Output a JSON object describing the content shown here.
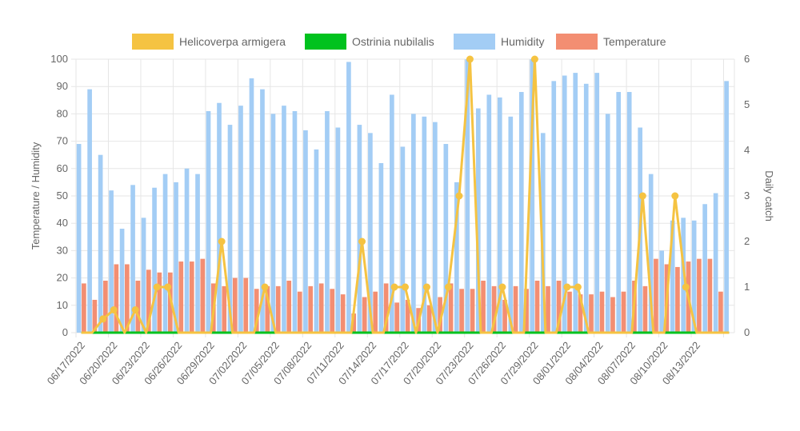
{
  "colors": {
    "helicoverpa": "#f5c342",
    "ostrinia": "#00c21e",
    "humidity": "#a3cdf5",
    "temperature": "#f38e72",
    "grid": "#e6e6e6",
    "text": "#666666"
  },
  "chart_data": {
    "type": "bar",
    "combo": "bars (left axis) + lines (right axis)",
    "legend_position": "top",
    "grid": true,
    "left_axis": {
      "label": "Temperature / Humidity",
      "range": [
        0,
        100
      ],
      "ticks": [
        "0",
        "10",
        "20",
        "30",
        "40",
        "50",
        "60",
        "70",
        "80",
        "90",
        "100"
      ]
    },
    "right_axis": {
      "label": "Daily catch",
      "range": [
        0,
        6
      ],
      "ticks": [
        "0",
        "1",
        "2",
        "3",
        "4",
        "5",
        "6"
      ]
    },
    "x_tick_labels": [
      "06/17/2022",
      "06/20/2022",
      "06/23/2022",
      "06/26/2022",
      "06/29/2022",
      "07/02/2022",
      "07/05/2022",
      "07/08/2022",
      "07/11/2022",
      "07/14/2022",
      "07/17/2022",
      "07/20/2022",
      "07/23/2022",
      "07/26/2022",
      "07/29/2022",
      "08/01/2022",
      "08/04/2022",
      "08/07/2022",
      "08/10/2022",
      "08/13/2022"
    ],
    "dates": [
      "06/17/2022",
      "06/18/2022",
      "06/19/2022",
      "06/20/2022",
      "06/21/2022",
      "06/22/2022",
      "06/23/2022",
      "06/24/2022",
      "06/25/2022",
      "06/26/2022",
      "06/27/2022",
      "06/28/2022",
      "06/29/2022",
      "06/30/2022",
      "07/01/2022",
      "07/02/2022",
      "07/03/2022",
      "07/04/2022",
      "07/05/2022",
      "07/06/2022",
      "07/07/2022",
      "07/08/2022",
      "07/09/2022",
      "07/10/2022",
      "07/11/2022",
      "07/12/2022",
      "07/13/2022",
      "07/14/2022",
      "07/15/2022",
      "07/16/2022",
      "07/17/2022",
      "07/18/2022",
      "07/19/2022",
      "07/20/2022",
      "07/21/2022",
      "07/22/2022",
      "07/23/2022",
      "07/24/2022",
      "07/25/2022",
      "07/26/2022",
      "07/27/2022",
      "07/28/2022",
      "07/29/2022",
      "07/30/2022",
      "07/31/2022",
      "08/01/2022",
      "08/02/2022",
      "08/03/2022",
      "08/04/2022",
      "08/05/2022",
      "08/06/2022",
      "08/07/2022",
      "08/08/2022",
      "08/09/2022",
      "08/10/2022",
      "08/11/2022",
      "08/12/2022",
      "08/13/2022",
      "08/14/2022",
      "08/15/2022",
      "08/16/2022"
    ],
    "series": [
      {
        "name": "Helicoverpa armigera",
        "type": "line",
        "axis": "right",
        "values": [
          0,
          0,
          0.3,
          0.5,
          0,
          0.5,
          0,
          1,
          1,
          0,
          0,
          0,
          0,
          2,
          0,
          0,
          0,
          1,
          0,
          0,
          0,
          0,
          0,
          0,
          0,
          0,
          2,
          0,
          0,
          1,
          1,
          0,
          1,
          0,
          1,
          3,
          6,
          0,
          0,
          1,
          0,
          0,
          6,
          0,
          0,
          1,
          1,
          0,
          0,
          0,
          0,
          0,
          3,
          0,
          0,
          3,
          1,
          0,
          0,
          0,
          0
        ]
      },
      {
        "name": "Ostrinia nubilalis",
        "type": "line",
        "axis": "right",
        "values": [
          0,
          0,
          0,
          0,
          0,
          0,
          0,
          0,
          0,
          0,
          0,
          0,
          0,
          0,
          0,
          0,
          0,
          0,
          0,
          0,
          0,
          0,
          0,
          0,
          0,
          0,
          0,
          0,
          0,
          0,
          0,
          0,
          0,
          0,
          0,
          0,
          0,
          0,
          0,
          0,
          0,
          0,
          0,
          0,
          0,
          0,
          0,
          0,
          0,
          0,
          0,
          0,
          0,
          0,
          0,
          0,
          0,
          0,
          0,
          0,
          0
        ]
      },
      {
        "name": "Humidity",
        "type": "bar",
        "axis": "left",
        "values": [
          69,
          89,
          65,
          52,
          38,
          54,
          42,
          53,
          58,
          55,
          60,
          58,
          81,
          84,
          76,
          83,
          93,
          89,
          80,
          83,
          81,
          74,
          67,
          81,
          75,
          99,
          76,
          73,
          62,
          87,
          68,
          80,
          79,
          77,
          69,
          55,
          100,
          82,
          87,
          86,
          79,
          88,
          100,
          73,
          92,
          94,
          95,
          91,
          95,
          80,
          88,
          88,
          75,
          58,
          30,
          41,
          42,
          41,
          47,
          51,
          92
        ]
      },
      {
        "name": "Temperature",
        "type": "bar",
        "axis": "left",
        "values": [
          18,
          12,
          19,
          25,
          25,
          19,
          23,
          22,
          22,
          26,
          26,
          27,
          18,
          17,
          20,
          20,
          16,
          17,
          17,
          19,
          15,
          17,
          18,
          16,
          14,
          7,
          13,
          15,
          18,
          11,
          12,
          9,
          10,
          13,
          18,
          16,
          16,
          19,
          17,
          12,
          17,
          16,
          19,
          17,
          19,
          15,
          14,
          14,
          15,
          13,
          15,
          19,
          17,
          27,
          25,
          24,
          26,
          27,
          27,
          15,
          null
        ]
      }
    ]
  }
}
